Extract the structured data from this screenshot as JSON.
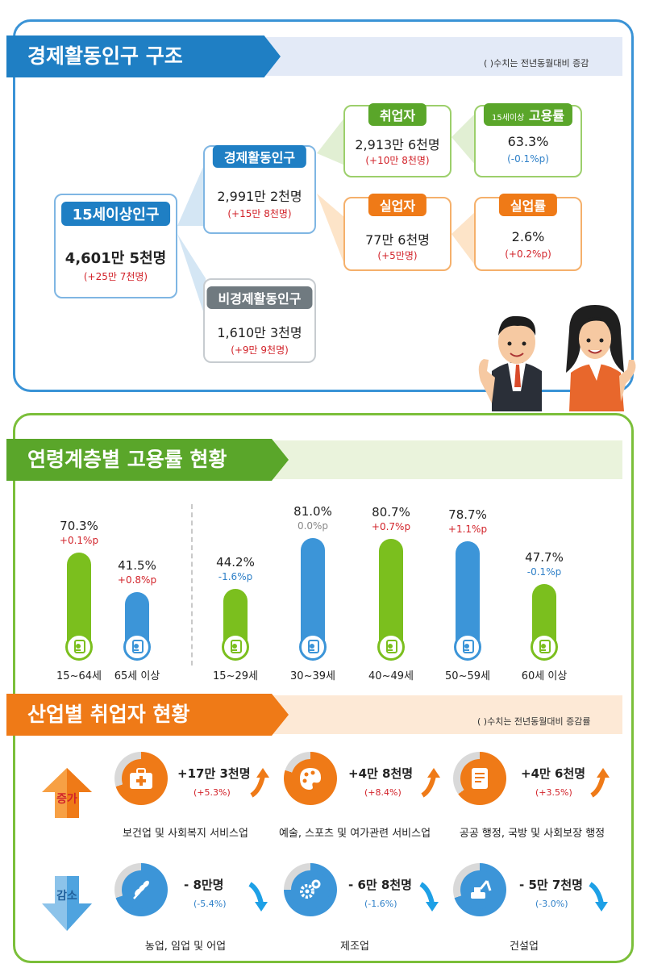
{
  "section1": {
    "title": "경제활동인구 구조",
    "note": "( )수치는 전년동월대비 증감",
    "pop15": {
      "label": "15세이상인구",
      "value": "4,601만 5천명",
      "delta": "(+25만 7천명)"
    },
    "active": {
      "label": "경제활동인구",
      "value": "2,991만 2천명",
      "delta": "(+15만 8천명)"
    },
    "inactive": {
      "label": "비경제활동인구",
      "value": "1,610만 3천명",
      "delta": "(+9만 9천명)"
    },
    "employed": {
      "label": "취업자",
      "value": "2,913만 6천명",
      "delta": "(+10만 8천명)"
    },
    "unemployed": {
      "label": "실업자",
      "value": "77만 6천명",
      "delta": "(+5만명)"
    },
    "emp_rate": {
      "label_small": "15세이상",
      "label": "고용률",
      "value": "63.3%",
      "delta": "(-0.1%p)"
    },
    "unemp_rate": {
      "label": "실업률",
      "value": "2.6%",
      "delta": "(+0.2%p)"
    }
  },
  "section2": {
    "title": "연령계층별 고용률 현황"
  },
  "chart_data": {
    "type": "bar",
    "categories": [
      "15~64세",
      "65세 이상",
      "15~29세",
      "30~39세",
      "40~49세",
      "50~59세",
      "60세 이상"
    ],
    "values": [
      70.3,
      41.5,
      44.2,
      81.0,
      80.7,
      78.7,
      47.7
    ],
    "labels": [
      "70.3%",
      "41.5%",
      "44.2%",
      "81.0%",
      "80.7%",
      "78.7%",
      "47.7%"
    ],
    "changes": [
      "+0.1%p",
      "+0.8%p",
      "-1.6%p",
      "0.0%p",
      "+0.7%p",
      "+1.1%p",
      "-0.1%p"
    ],
    "change_colors": [
      "#d2232a",
      "#d2232a",
      "#2f80c8",
      "#888888",
      "#d2232a",
      "#d2232a",
      "#2f80c8"
    ],
    "bar_colors": [
      "#7bbf1e",
      "#3c95d8",
      "#7bbf1e",
      "#3c95d8",
      "#7bbf1e",
      "#3c95d8",
      "#7bbf1e"
    ],
    "ylim": [
      0,
      100
    ]
  },
  "section3": {
    "title": "산업별 취업자 현황",
    "note": "( )수치는 전년동월대비 증감률",
    "increase_label": "증가",
    "decrease_label": "감소",
    "increase": [
      {
        "name": "보건업 및 사회복지 서비스업",
        "value": "+17만 3천명",
        "pct": "(+5.3%)",
        "icon": "first-aid-kit-icon"
      },
      {
        "name": "예술, 스포츠 및 여가관련 서비스업",
        "value": "+4만 8천명",
        "pct": "(+8.4%)",
        "icon": "paint-palette-icon"
      },
      {
        "name": "공공 행정, 국방 및 사회보장 행정",
        "value": "+4만 6천명",
        "pct": "(+3.5%)",
        "icon": "document-scroll-icon"
      }
    ],
    "decrease": [
      {
        "name": "농업, 임업 및 어업",
        "value": "- 8만명",
        "pct": "(-5.4%)",
        "icon": "wheat-icon"
      },
      {
        "name": "제조업",
        "value": "- 6만 8천명",
        "pct": "(-1.6%)",
        "icon": "gears-icon"
      },
      {
        "name": "건설업",
        "value": "- 5만 7천명",
        "pct": "(-3.0%)",
        "icon": "excavator-icon"
      }
    ]
  },
  "colors": {
    "blue": "#1f7fc4",
    "green": "#5aa62a",
    "orange": "#ef7a17",
    "gray": "#707a80",
    "red": "#d2232a"
  }
}
